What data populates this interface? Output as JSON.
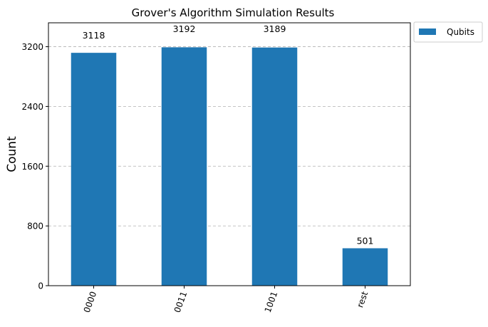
{
  "chart_data": {
    "type": "bar",
    "title": "Grover's Algorithm Simulation Results",
    "xlabel": "",
    "ylabel": "Count",
    "categories": [
      "0000",
      "0011",
      "1001",
      "rest"
    ],
    "series": [
      {
        "name": "Qubits",
        "values": [
          3118,
          3192,
          3189,
          501
        ],
        "color": "#1f77b4"
      }
    ],
    "ylim": [
      0,
      3520
    ],
    "yticks": [
      0,
      800,
      1600,
      2400,
      3200
    ],
    "grid": "y-dashed",
    "legend_position": "outside-top-right",
    "xtick_rotation": -70
  }
}
